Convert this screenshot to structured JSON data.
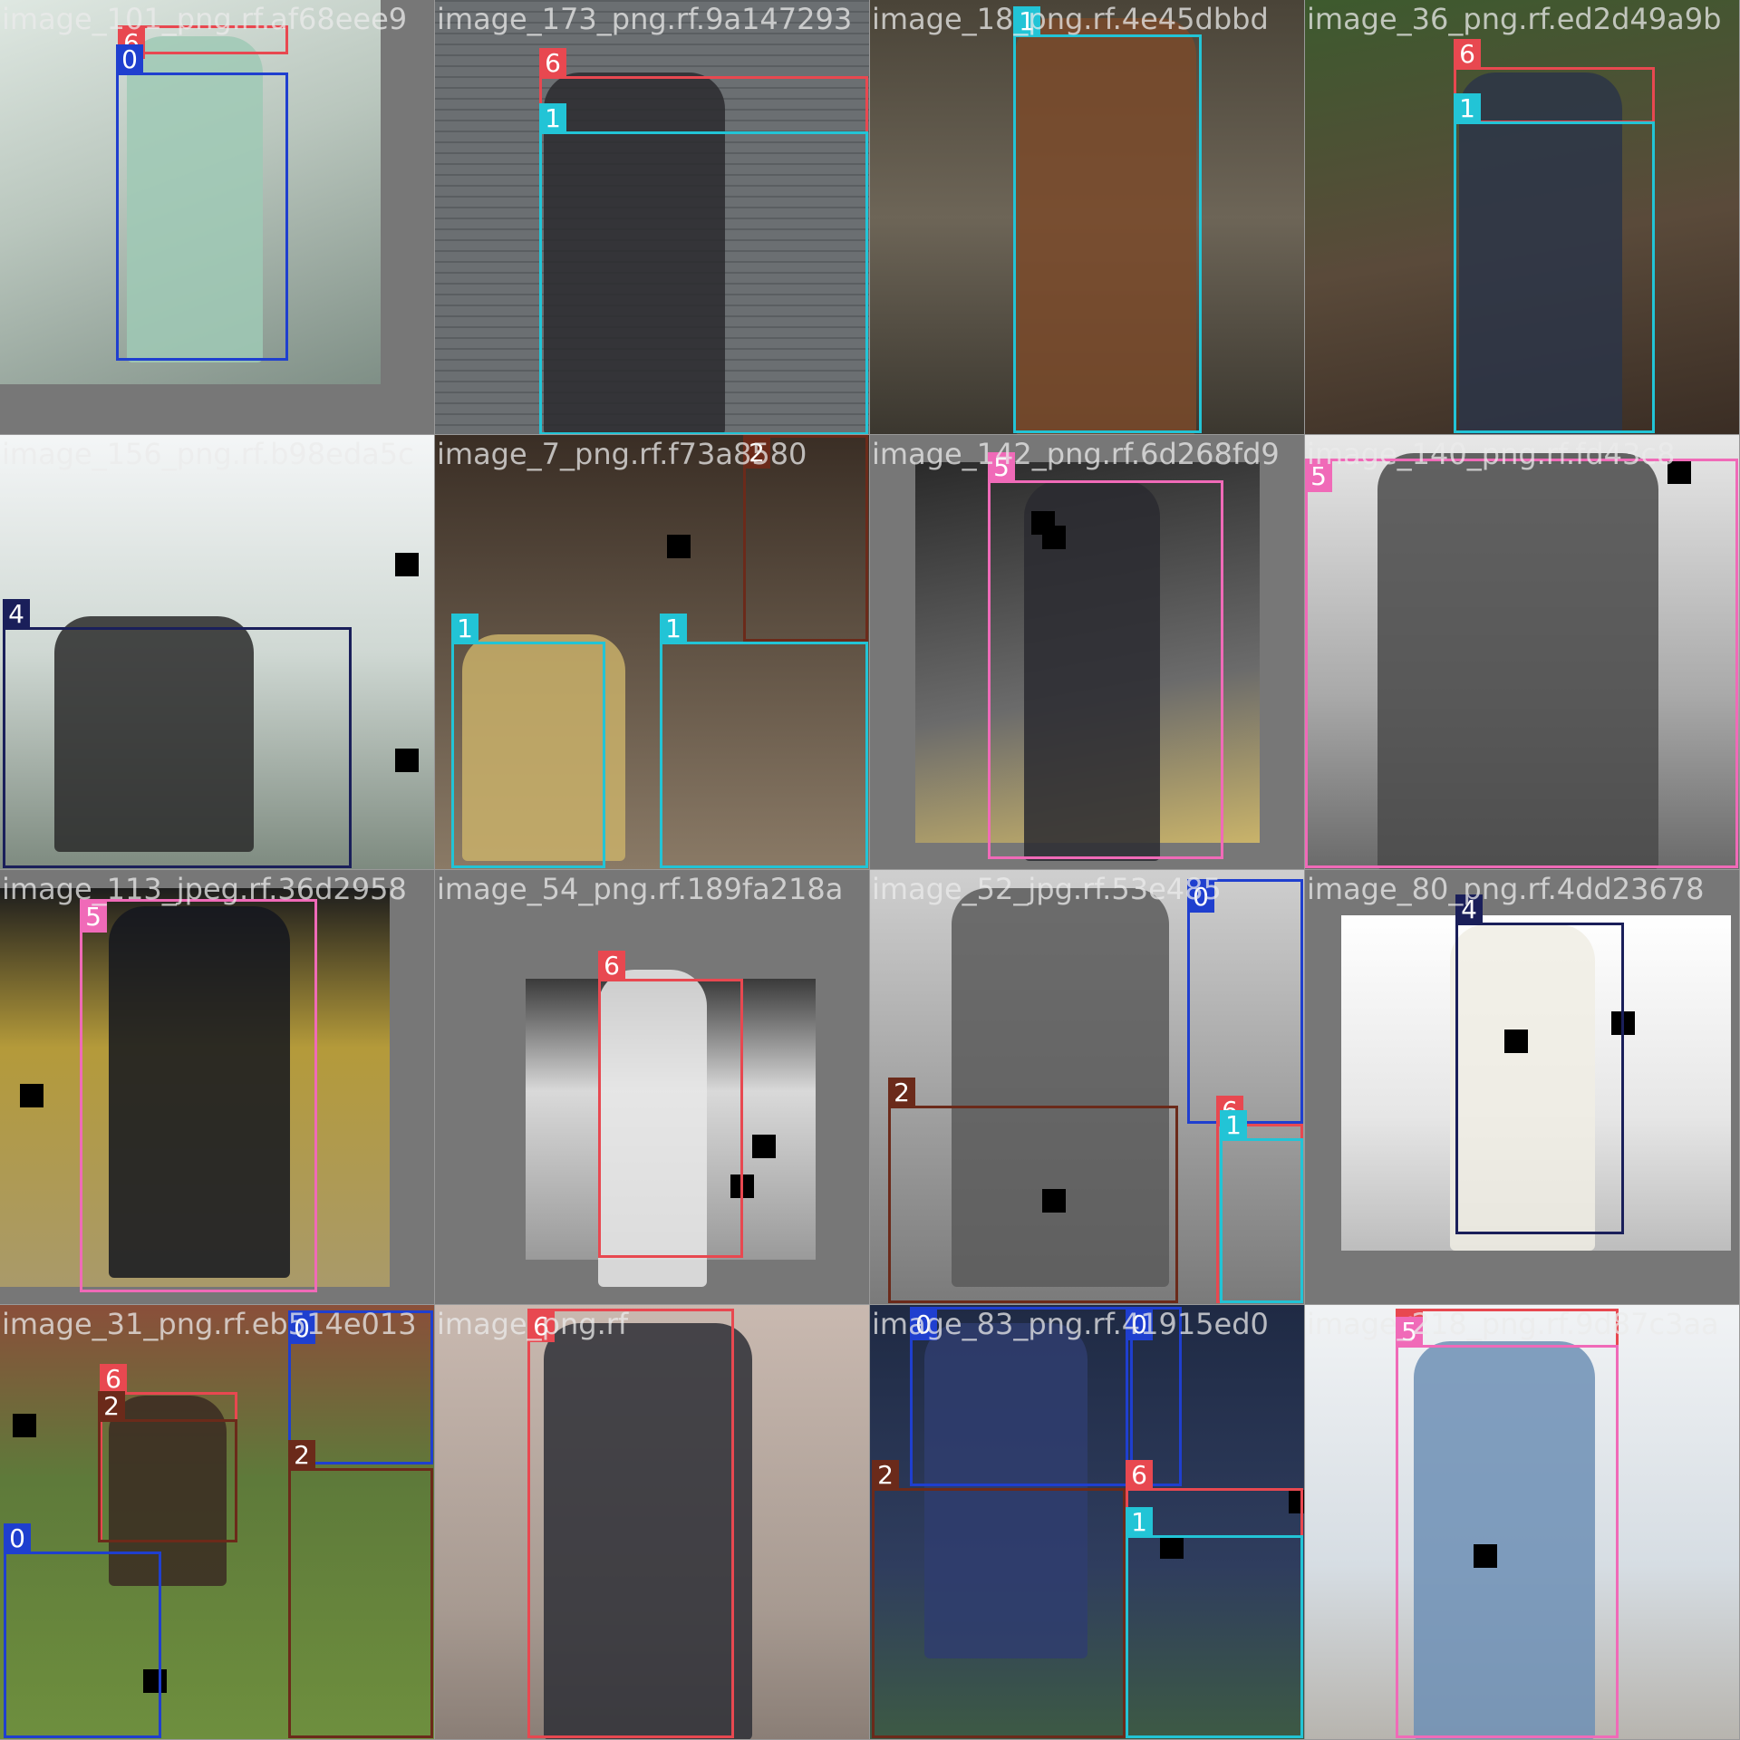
{
  "class_colors": {
    "0": "#1f3fcf",
    "1": "#22c4d6",
    "2": "#6b2a1a",
    "4": "#1a1f5a",
    "5": "#f06ab8",
    "6": "#e84850"
  },
  "tiles": [
    {
      "caption": "image_101_png.rf.af68eee9",
      "photo_class": "ph-light",
      "boxes": [
        {
          "cls": "6"
        },
        {
          "cls": "0"
        }
      ]
    },
    {
      "caption": "image_173_png.rf.9a147293",
      "photo_class": "ph-brick",
      "boxes": [
        {
          "cls": "6"
        },
        {
          "cls": "1"
        }
      ]
    },
    {
      "caption": "image_18_png.rf.4e45dbbd",
      "photo_class": "ph-street",
      "boxes": [
        {
          "cls": "1"
        }
      ]
    },
    {
      "caption": "image_36_png.rf.ed2d49a9b",
      "photo_class": "ph-green",
      "boxes": [
        {
          "cls": "6"
        },
        {
          "cls": "1"
        }
      ]
    },
    {
      "caption": "image_156_png.rf.b98eda5c",
      "photo_class": "ph-sky",
      "boxes": [
        {
          "cls": "4"
        }
      ]
    },
    {
      "caption": "image_7_png.rf.f73a8580",
      "photo_class": "ph-indoor",
      "boxes": [
        {
          "cls": "2"
        },
        {
          "cls": "1"
        },
        {
          "cls": "1"
        }
      ]
    },
    {
      "caption": "image_142_png.rf.6d268fd9",
      "photo_class": "ph-paving",
      "boxes": [
        {
          "cls": "5"
        }
      ]
    },
    {
      "caption": "image_140_png.rf.fd43c8",
      "photo_class": "ph-gray",
      "boxes": [
        {
          "cls": "5"
        }
      ]
    },
    {
      "caption": "image_113_jpeg.rf.36d2958",
      "photo_class": "ph-yellow",
      "boxes": [
        {
          "cls": "5"
        }
      ]
    },
    {
      "caption": "image_54_png.rf.189fa218a",
      "photo_class": "ph-studio",
      "boxes": [
        {
          "cls": "6"
        }
      ]
    },
    {
      "caption": "image_52_jpg.rf.53e485",
      "photo_class": "ph-bw",
      "boxes": [
        {
          "cls": "2"
        },
        {
          "cls": "0"
        },
        {
          "cls": "6"
        },
        {
          "cls": "1"
        }
      ]
    },
    {
      "caption": "image_80_png.rf.4dd23678",
      "photo_class": "ph-white",
      "boxes": [
        {
          "cls": "4"
        }
      ]
    },
    {
      "caption": "image_31_png.rf.eb514e013",
      "photo_class": "ph-park",
      "boxes": [
        {
          "cls": "6"
        },
        {
          "cls": "2"
        },
        {
          "cls": "0"
        },
        {
          "cls": "0"
        },
        {
          "cls": "2"
        }
      ]
    },
    {
      "caption": "image_png.rf",
      "photo_class": "ph-wall",
      "boxes": [
        {
          "cls": "6"
        }
      ]
    },
    {
      "caption": "image_83_png.rf.41915ed0",
      "photo_class": "ph-navy",
      "boxes": [
        {
          "cls": "0"
        },
        {
          "cls": "0"
        },
        {
          "cls": "2"
        },
        {
          "cls": "6"
        },
        {
          "cls": "1"
        }
      ]
    },
    {
      "caption": "image_218_png.rf.9d87c3aa",
      "photo_class": "ph-pale",
      "boxes": [
        {
          "cls": "6"
        },
        {
          "cls": "5"
        }
      ]
    }
  ]
}
